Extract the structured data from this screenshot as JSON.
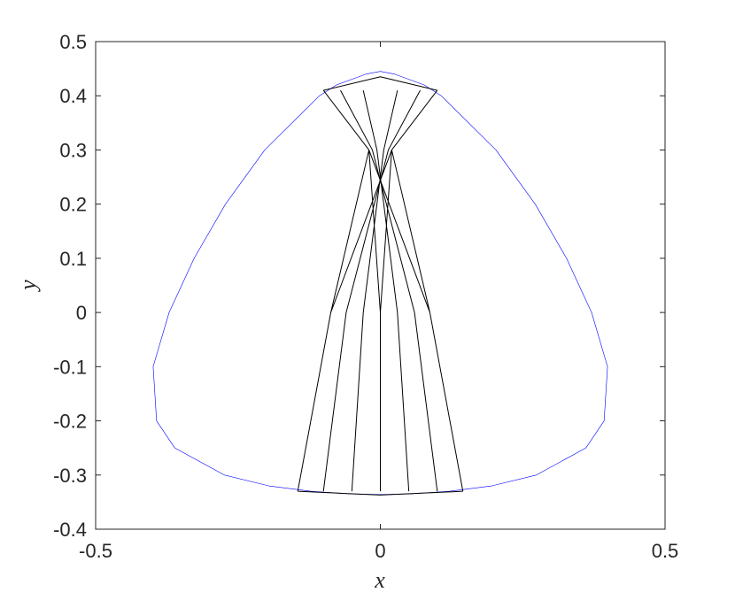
{
  "chart_data": {
    "type": "line",
    "xlabel": "x",
    "ylabel": "y",
    "xlim": [
      -0.5,
      0.5
    ],
    "ylim": [
      -0.4,
      0.5
    ],
    "xticks": [
      -0.5,
      0,
      0.5
    ],
    "yticks": [
      -0.4,
      -0.3,
      -0.2,
      -0.1,
      0,
      0.1,
      0.2,
      0.3,
      0.4,
      0.5
    ],
    "box": true,
    "series": [
      {
        "color": "#0000ff",
        "width": 0.6,
        "x": [
          0,
          0.025,
          0.077,
          0.107,
          0.203,
          0.272,
          0.327,
          0.371,
          0.399,
          0.393,
          0.361,
          0.274,
          0.196,
          0.121,
          0.05,
          0,
          -0.05,
          -0.121,
          -0.196,
          -0.274,
          -0.361,
          -0.393,
          -0.399,
          -0.371,
          -0.327,
          -0.272,
          -0.203,
          -0.107,
          -0.077,
          -0.025,
          0
        ],
        "y": [
          0.445,
          0.44,
          0.42,
          0.4,
          0.3,
          0.2,
          0.1,
          0,
          -0.1,
          -0.2,
          -0.25,
          -0.3,
          -0.32,
          -0.33,
          -0.335,
          -0.336,
          -0.335,
          -0.33,
          -0.32,
          -0.3,
          -0.25,
          -0.2,
          -0.1,
          0,
          0.1,
          0.2,
          0.3,
          0.4,
          0.42,
          0.44,
          0.445
        ]
      },
      {
        "color": "#000000",
        "width": 1,
        "x": [
          -0.145,
          -0.087,
          0.02,
          0.1,
          null,
          -0.1,
          -0.06,
          0.014,
          0.07,
          null,
          -0.05,
          -0.03,
          0.006,
          0.03,
          null,
          0.05,
          0.03,
          -0.006,
          -0.03,
          null,
          0.1,
          0.06,
          -0.014,
          -0.07,
          null,
          0.145,
          0.087,
          -0.02,
          -0.1,
          null,
          -0.145,
          -0.087,
          -0.02,
          -0.1,
          null,
          0.145,
          0.087,
          0.02,
          0.1,
          null,
          0,
          0,
          -0.02,
          -0.1,
          null,
          0,
          0,
          0.02,
          0.1,
          null,
          -0.1,
          0,
          0.1,
          null,
          -0.145,
          0,
          0.145
        ],
        "y": [
          -0.33,
          0,
          0.3,
          0.41,
          null,
          -0.33,
          0,
          0.3,
          0.41,
          null,
          -0.33,
          0,
          0.3,
          0.41,
          null,
          -0.33,
          0,
          0.3,
          0.41,
          null,
          -0.33,
          0,
          0.3,
          0.41,
          null,
          -0.33,
          0,
          0.3,
          0.41,
          null,
          -0.33,
          0,
          0.3,
          0.41,
          null,
          -0.33,
          0,
          0.3,
          0.41,
          null,
          -0.33,
          0,
          0.3,
          0.41,
          null,
          -0.33,
          0,
          0.3,
          0.41,
          null,
          0.41,
          0.435,
          0.41,
          null,
          -0.33,
          -0.337,
          -0.33
        ]
      }
    ]
  }
}
